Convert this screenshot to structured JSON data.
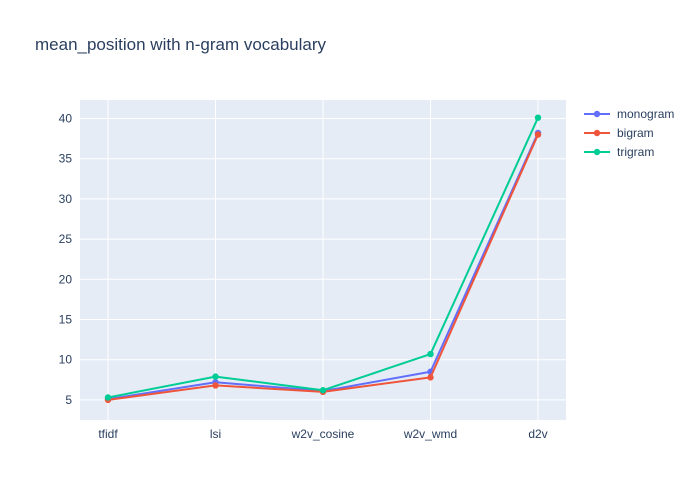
{
  "chart_data": {
    "type": "line",
    "title": "mean_position with n-gram vocabulary",
    "xlabel": "",
    "ylabel": "",
    "categories": [
      "tfidf",
      "lsi",
      "w2v_cosine",
      "w2v_wmd",
      "d2v"
    ],
    "yticks": [
      5,
      10,
      15,
      20,
      25,
      30,
      35,
      40
    ],
    "ylim": [
      2.5,
      42.3
    ],
    "grid": true,
    "legend_position": "top-right",
    "series": [
      {
        "name": "monogram",
        "color": "#636efa",
        "values": [
          5.1,
          7.2,
          6.1,
          8.5,
          38.2
        ]
      },
      {
        "name": "bigram",
        "color": "#ef553b",
        "values": [
          5.0,
          6.8,
          6.0,
          7.8,
          38.0
        ]
      },
      {
        "name": "trigram",
        "color": "#00cc96",
        "values": [
          5.3,
          7.9,
          6.2,
          10.7,
          40.1
        ]
      }
    ]
  }
}
